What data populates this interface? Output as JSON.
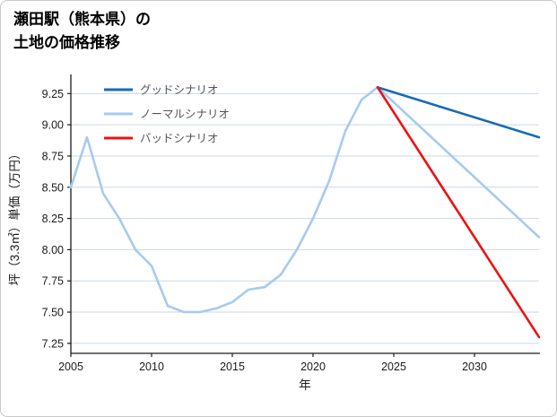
{
  "title": {
    "line1": "瀬田駅（熊本県）の",
    "line2": "土地の価格推移"
  },
  "chart_data": {
    "type": "line",
    "title": "瀬田駅（熊本県）の土地の価格推移",
    "xlabel": "年",
    "ylabel": "坪（3.3㎡）単価（万円）",
    "xlim": [
      2005,
      2034
    ],
    "ylim": [
      7.25,
      9.25
    ],
    "xticks": [
      2005,
      2010,
      2015,
      2020,
      2025,
      2030
    ],
    "yticks": [
      7.25,
      7.5,
      7.75,
      8.0,
      8.25,
      8.5,
      8.75,
      9.0,
      9.25
    ],
    "grid": "horizontal",
    "legend_position": "upper-left",
    "colors": {
      "good": "#1a6ab5",
      "normal": "#a6cbee",
      "bad": "#ee1111",
      "grid": "#ccd7e6",
      "axis": "#1a1a1a",
      "tick_text": "#1a1a1a",
      "legend_text": "#555555"
    },
    "series": [
      {
        "name": "グッドシナリオ",
        "color_key": "good",
        "x": [
          2024,
          2034
        ],
        "y": [
          9.3,
          8.9
        ]
      },
      {
        "name": "ノーマルシナリオ",
        "color_key": "normal",
        "x": [
          2005,
          2006,
          2007,
          2008,
          2009,
          2010,
          2011,
          2012,
          2013,
          2014,
          2015,
          2016,
          2017,
          2018,
          2019,
          2020,
          2021,
          2022,
          2023,
          2024,
          2025,
          2026,
          2027,
          2028,
          2029,
          2030,
          2031,
          2032,
          2033,
          2034
        ],
        "y": [
          8.5,
          8.9,
          8.45,
          8.25,
          8.0,
          7.87,
          7.55,
          7.5,
          7.5,
          7.53,
          7.58,
          7.68,
          7.7,
          7.8,
          8.0,
          8.25,
          8.55,
          8.95,
          9.2,
          9.3,
          9.18,
          9.06,
          8.94,
          8.82,
          8.7,
          8.58,
          8.46,
          8.34,
          8.22,
          8.1
        ]
      },
      {
        "name": "バッドシナリオ",
        "color_key": "bad",
        "x": [
          2024,
          2034
        ],
        "y": [
          9.3,
          7.3
        ]
      }
    ]
  }
}
